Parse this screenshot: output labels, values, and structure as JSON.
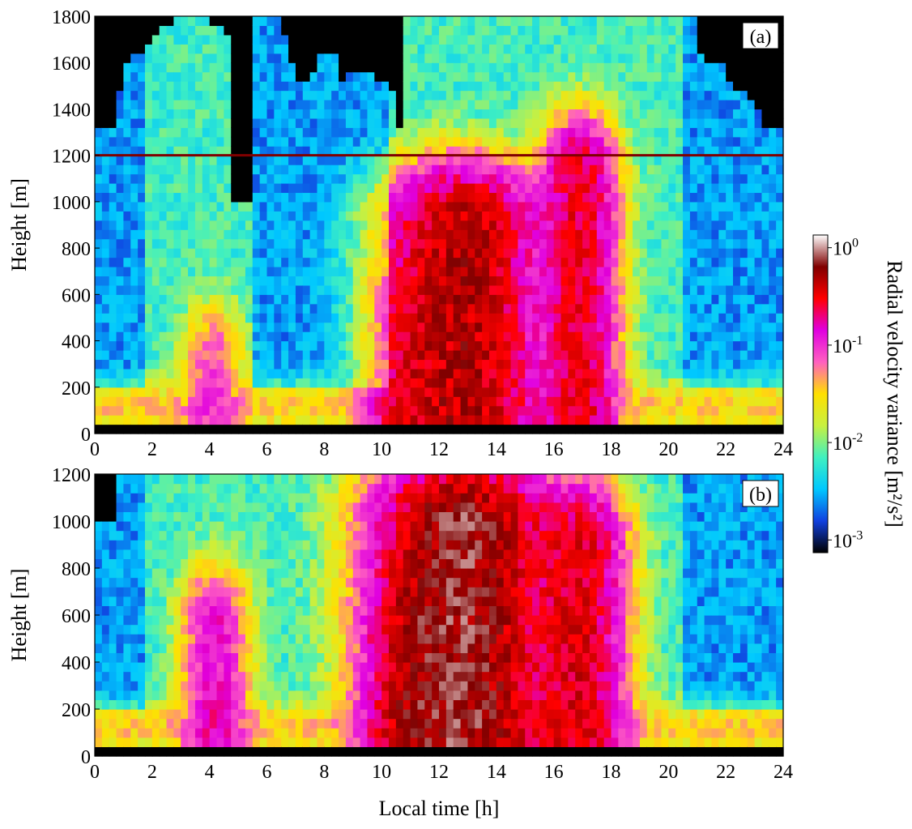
{
  "colors": {
    "stops": [
      "#000000",
      "#1040e0",
      "#00c8ff",
      "#40f0c0",
      "#c8f040",
      "#ffe000",
      "#ff60c0",
      "#e000e0",
      "#ff0000",
      "#800000",
      "#ffffff"
    ],
    "mask": "#000000",
    "cut_line": "#800000"
  },
  "chart_data": [
    {
      "type": "heatmap",
      "panel_label": "(a)",
      "xlabel": "",
      "ylabel": "Height [m]",
      "xlim": [
        0,
        24
      ],
      "ylim": [
        0,
        1800
      ],
      "x_ticks": [
        0,
        2,
        4,
        6,
        8,
        10,
        12,
        14,
        16,
        18,
        20,
        22,
        24
      ],
      "y_ticks": [
        0,
        200,
        400,
        600,
        800,
        1000,
        1200,
        1400,
        1600,
        1800
      ],
      "colorbar_range": [
        0.001,
        1
      ],
      "colorbar_scale": "log",
      "horizontal_line_height": 1200,
      "data_top_height": [
        1320,
        1330,
        1460,
        1600,
        1650,
        1680,
        1700,
        1760,
        1780,
        1800,
        1800,
        1790,
        1760,
        1700,
        1000,
        1000,
        1800,
        1800,
        1800,
        1700,
        1600,
        1520,
        1560,
        1620,
        1640,
        1500,
        1560,
        1560,
        1540,
        1500,
        1480,
        1300,
        1800,
        1800,
        1800,
        1800,
        1780,
        1800,
        1800,
        1800,
        1800,
        1800,
        1800,
        1800,
        1800,
        1800,
        1800,
        1800,
        1800,
        1800,
        1800,
        1800,
        1800,
        1800,
        1800,
        1800,
        1800,
        1800,
        1800,
        1800,
        1800,
        1800,
        1640,
        1600,
        1580,
        1520,
        1480,
        1420,
        1400,
        1300,
        1300
      ],
      "base_height": 50,
      "layers": [
        {
          "kind": "ridge",
          "x0": 12.8,
          "width": 2.0,
          "peak": 0.6,
          "depth": 900
        },
        {
          "kind": "ridge",
          "x0": 16.9,
          "width": 1.0,
          "peak": 0.35,
          "depth": 1100
        },
        {
          "kind": "ridge",
          "x0": 10.8,
          "width": 0.9,
          "peak": 0.2,
          "depth": 550
        },
        {
          "kind": "ridge",
          "x0": 4.1,
          "width": 0.8,
          "peak": 0.08,
          "depth": 300
        },
        {
          "kind": "quiet",
          "ranges": [
            [
              0,
              1.8
            ],
            [
              5.5,
              10.2
            ],
            [
              20.5,
              24
            ]
          ]
        }
      ]
    },
    {
      "type": "heatmap",
      "panel_label": "(b)",
      "xlabel": "Local time [h]",
      "ylabel": "Height [m]",
      "xlim": [
        0,
        24
      ],
      "ylim": [
        0,
        1200
      ],
      "x_ticks": [
        0,
        2,
        4,
        6,
        8,
        10,
        12,
        14,
        16,
        18,
        20,
        22,
        24
      ],
      "y_ticks": [
        0,
        200,
        400,
        600,
        800,
        1000,
        1200
      ],
      "colorbar_range": [
        0.001,
        1
      ],
      "colorbar_scale": "log",
      "data_top_height": [
        1000,
        1000,
        1200,
        1200,
        1200,
        1200,
        1200,
        1200,
        1200,
        1200,
        1200,
        1200,
        1200,
        1200,
        1200,
        1200,
        1200,
        1200,
        1200,
        1200,
        1200,
        1200,
        1200,
        1200,
        1200,
        1200,
        1200,
        1200,
        1200,
        1200,
        1200,
        1200,
        1200,
        1200,
        1200,
        1200,
        1200,
        1200,
        1200,
        1200,
        1200,
        1200,
        1200,
        1200,
        1200,
        1200,
        1200,
        1200,
        1200,
        1200,
        1200,
        1200,
        1200,
        1200,
        1200,
        1200,
        1200,
        1200,
        1200,
        1200,
        1200,
        1200,
        1200,
        1200,
        1200,
        1200,
        1200,
        1200,
        1200,
        1200,
        1200
      ],
      "base_height": 50,
      "layers": [
        {
          "kind": "ridge",
          "x0": 12.8,
          "width": 2.2,
          "peak": 0.9,
          "depth": 1000
        },
        {
          "kind": "ridge",
          "x0": 16.9,
          "width": 1.2,
          "peak": 0.4,
          "depth": 900
        },
        {
          "kind": "ridge",
          "x0": 10.8,
          "width": 1.0,
          "peak": 0.25,
          "depth": 600
        },
        {
          "kind": "ridge",
          "x0": 4.2,
          "width": 0.9,
          "peak": 0.15,
          "depth": 550
        },
        {
          "kind": "quiet",
          "ranges": [
            [
              0,
              1.8
            ],
            [
              20.5,
              24
            ]
          ]
        }
      ]
    }
  ],
  "colorbar": {
    "label": "Radial velocity variance [m²/s²]",
    "tick_labels": [
      "10",
      "10",
      "10",
      "10"
    ],
    "tick_exponents": [
      "0",
      "-1",
      "-2",
      "-3"
    ],
    "tick_values": [
      1,
      0.1,
      0.01,
      0.001
    ]
  }
}
